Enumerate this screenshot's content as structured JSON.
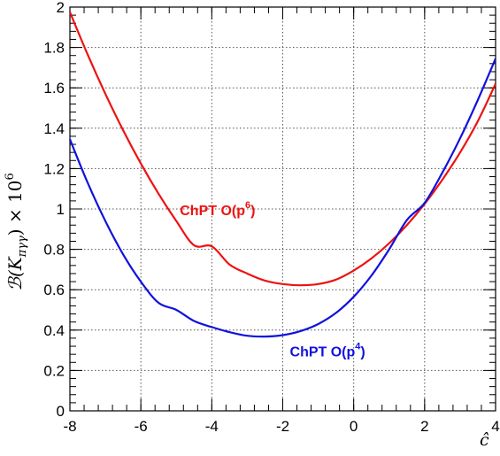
{
  "chart_data": {
    "type": "line",
    "title": "",
    "xlabel": "ĉ",
    "ylabel": "ℬ(K_{πγγ}) × 10⁶",
    "ylabel_main": "ℬ(K",
    "ylabel_sub": "πγγ",
    "ylabel_tail": ") × 10",
    "ylabel_exp": "6",
    "xlim": [
      -8,
      4
    ],
    "ylim": [
      0,
      2
    ],
    "grid": true,
    "x_ticks": [
      -8,
      -6,
      -4,
      -2,
      0,
      2,
      4
    ],
    "x_tick_labels": [
      "-8",
      "-6",
      "-4",
      "-2",
      "0",
      "2",
      "4"
    ],
    "y_ticks": [
      0,
      0.2,
      0.4,
      0.6,
      0.8,
      1.0,
      1.2,
      1.4,
      1.6,
      1.8,
      2.0
    ],
    "y_tick_labels": [
      "0",
      "0.2",
      "0.4",
      "0.6",
      "0.8",
      "1",
      "1.2",
      "1.4",
      "1.6",
      "1.8",
      "2"
    ],
    "series": [
      {
        "name": "ChPT O(p6)",
        "label_main": "ChPT O(p",
        "label_exp": "6",
        "label_close": ")",
        "label_at": [
          -4.9,
          0.97
        ],
        "color": "#ee1111",
        "x": [
          -8,
          -7.5,
          -7,
          -6.5,
          -6,
          -5.5,
          -5,
          -4.5,
          -4,
          -3.5,
          -3,
          -2.5,
          -2,
          -1.5,
          -1,
          -0.5,
          0,
          0.5,
          1,
          1.5,
          2,
          2.5,
          3,
          3.5,
          4
        ],
        "y": [
          1.975,
          1.765,
          1.57,
          1.39,
          1.225,
          1.075,
          0.94,
          0.82,
          0.815,
          0.725,
          0.68,
          0.645,
          0.628,
          0.622,
          0.628,
          0.65,
          0.695,
          0.755,
          0.83,
          0.92,
          1.025,
          1.145,
          1.28,
          1.435,
          1.62
        ]
      },
      {
        "name": "ChPT O(p4)",
        "label_main": "ChPT O(p",
        "label_exp": "4",
        "label_close": ")",
        "label_at": [
          -1.8,
          0.27
        ],
        "color": "#1111dd",
        "x": [
          -8,
          -7.5,
          -7,
          -6.5,
          -6,
          -5.5,
          -5,
          -4.5,
          -4,
          -3.5,
          -3,
          -2.5,
          -2,
          -1.5,
          -1,
          -0.5,
          0,
          0.5,
          1,
          1.5,
          2,
          2.5,
          3,
          3.5,
          4
        ],
        "y": [
          1.345,
          1.13,
          0.94,
          0.775,
          0.64,
          0.535,
          0.5,
          0.445,
          0.415,
          0.39,
          0.372,
          0.368,
          0.375,
          0.395,
          0.43,
          0.485,
          0.565,
          0.67,
          0.8,
          0.945,
          1.03,
          1.18,
          1.35,
          1.54,
          1.745
        ]
      }
    ]
  }
}
